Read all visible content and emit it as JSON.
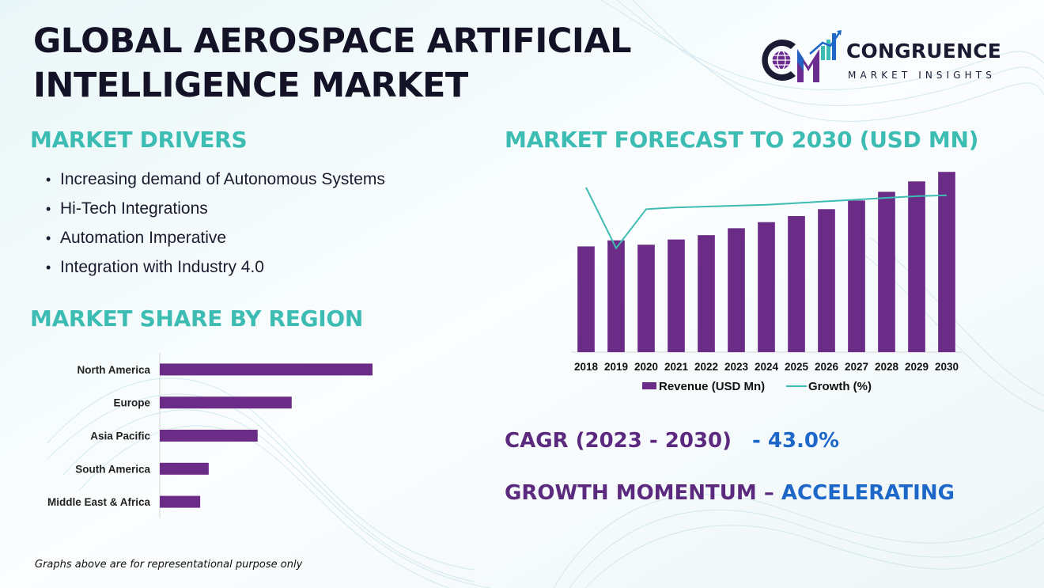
{
  "title": {
    "line1": "GLOBAL AEROSPACE ARTIFICIAL",
    "line2": "INTELLIGENCE MARKET"
  },
  "logo": {
    "name": "CONGRUENCE",
    "subtitle": "MARKET INSIGHTS",
    "icon": "cm-globe-growth-logo",
    "colors": {
      "dark": "#1c1a33",
      "accent": "#6a2c8e",
      "teal": "#3cbcb2",
      "blue": "#1d67c8"
    }
  },
  "drivers": {
    "title": "MARKET DRIVERS",
    "bullet": "•",
    "items": [
      "Increasing demand of Autonomous Systems",
      "Hi-Tech Integrations",
      "Automation Imperative",
      "Integration with Industry 4.0"
    ]
  },
  "region_section": {
    "title": "MARKET SHARE BY REGION"
  },
  "forecast_section": {
    "title": "MARKET FORECAST TO 2030 (USD MN)"
  },
  "stats": {
    "cagr_label": "CAGR (2023 - 2030)",
    "cagr_value": "- 43.0%",
    "momentum_label": "GROWTH MOMENTUM –",
    "momentum_value": "ACCELERATING"
  },
  "footnote": "Graphs above are for representational purpose only",
  "colors": {
    "bar": "#6a2c86",
    "line": "#3cbcb2",
    "heading_teal": "#3cbcb2",
    "stat_purple": "#5b2a7e",
    "stat_blue": "#1d67c8"
  },
  "chart_data": [
    {
      "type": "bar",
      "orientation": "vertical",
      "title": "",
      "xlabel": "",
      "ylabel": "",
      "categories": [
        "2018",
        "2019",
        "2020",
        "2021",
        "2022",
        "2023",
        "2024",
        "2025",
        "2026",
        "2027",
        "2028",
        "2029",
        "2030"
      ],
      "series": [
        {
          "name": "Revenue (USD Mn)",
          "type": "bar",
          "values": [
            122,
            129,
            124,
            130,
            135,
            143,
            150,
            157,
            165,
            175,
            185,
            197,
            208
          ]
        },
        {
          "name": "Growth (%)",
          "type": "line",
          "values": [
            190,
            120,
            165,
            167,
            168,
            169,
            170,
            172,
            174,
            176,
            178,
            180,
            181
          ]
        }
      ],
      "ylim": [
        0,
        210
      ],
      "grid": false,
      "legend": "bottom"
    },
    {
      "type": "bar",
      "orientation": "horizontal",
      "title": "",
      "categories": [
        "North America",
        "Europe",
        "Asia Pacific",
        "South America",
        "Middle East & Africa"
      ],
      "values": [
        100,
        62,
        46,
        23,
        19
      ],
      "xlim": [
        0,
        100
      ],
      "grid": false
    }
  ]
}
